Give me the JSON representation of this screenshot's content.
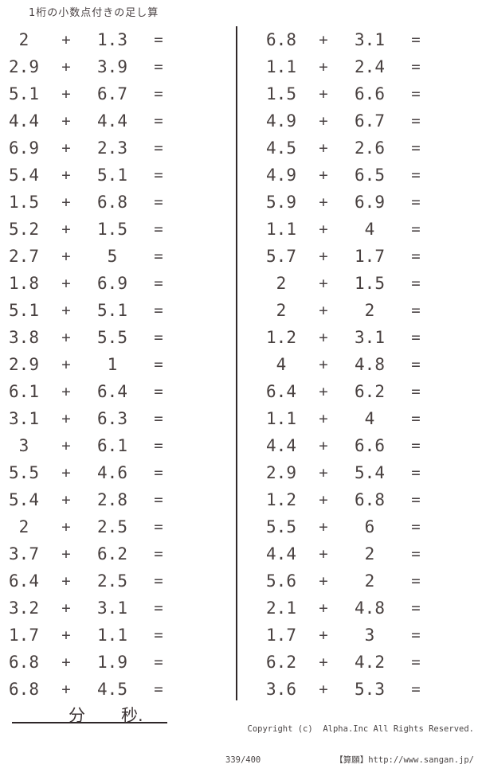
{
  "title": "1桁の小数点付きの足し算",
  "operators": {
    "plus": "+",
    "equals": "="
  },
  "problems": {
    "left": [
      {
        "a": "2",
        "b": "1.3"
      },
      {
        "a": "2.9",
        "b": "3.9"
      },
      {
        "a": "5.1",
        "b": "6.7"
      },
      {
        "a": "4.4",
        "b": "4.4"
      },
      {
        "a": "6.9",
        "b": "2.3"
      },
      {
        "a": "5.4",
        "b": "5.1"
      },
      {
        "a": "1.5",
        "b": "6.8"
      },
      {
        "a": "5.2",
        "b": "1.5"
      },
      {
        "a": "2.7",
        "b": "5"
      },
      {
        "a": "1.8",
        "b": "6.9"
      },
      {
        "a": "5.1",
        "b": "5.1"
      },
      {
        "a": "3.8",
        "b": "5.5"
      },
      {
        "a": "2.9",
        "b": "1"
      },
      {
        "a": "6.1",
        "b": "6.4"
      },
      {
        "a": "3.1",
        "b": "6.3"
      },
      {
        "a": "3",
        "b": "6.1"
      },
      {
        "a": "5.5",
        "b": "4.6"
      },
      {
        "a": "5.4",
        "b": "2.8"
      },
      {
        "a": "2",
        "b": "2.5"
      },
      {
        "a": "3.7",
        "b": "6.2"
      },
      {
        "a": "6.4",
        "b": "2.5"
      },
      {
        "a": "3.2",
        "b": "3.1"
      },
      {
        "a": "1.7",
        "b": "1.1"
      },
      {
        "a": "6.8",
        "b": "1.9"
      },
      {
        "a": "6.8",
        "b": "4.5"
      }
    ],
    "right": [
      {
        "a": "6.8",
        "b": "3.1"
      },
      {
        "a": "1.1",
        "b": "2.4"
      },
      {
        "a": "1.5",
        "b": "6.6"
      },
      {
        "a": "4.9",
        "b": "6.7"
      },
      {
        "a": "4.5",
        "b": "2.6"
      },
      {
        "a": "4.9",
        "b": "6.5"
      },
      {
        "a": "5.9",
        "b": "6.9"
      },
      {
        "a": "1.1",
        "b": "4"
      },
      {
        "a": "5.7",
        "b": "1.7"
      },
      {
        "a": "2",
        "b": "1.5"
      },
      {
        "a": "2",
        "b": "2"
      },
      {
        "a": "1.2",
        "b": "3.1"
      },
      {
        "a": "4",
        "b": "4.8"
      },
      {
        "a": "6.4",
        "b": "6.2"
      },
      {
        "a": "1.1",
        "b": "4"
      },
      {
        "a": "4.4",
        "b": "6.6"
      },
      {
        "a": "2.9",
        "b": "5.4"
      },
      {
        "a": "1.2",
        "b": "6.8"
      },
      {
        "a": "5.5",
        "b": "6"
      },
      {
        "a": "4.4",
        "b": "2"
      },
      {
        "a": "5.6",
        "b": "2"
      },
      {
        "a": "2.1",
        "b": "4.8"
      },
      {
        "a": "1.7",
        "b": "3"
      },
      {
        "a": "6.2",
        "b": "4.2"
      },
      {
        "a": "3.6",
        "b": "5.3"
      }
    ]
  },
  "footer": {
    "minutes_label": "分",
    "seconds_label": "秒.",
    "copyright_line1": "Copyright (c)  Alpha.Inc All Rights Reserved.",
    "page_number": "339/400",
    "site_credit": "【算願】http://www.sangan.jp/"
  },
  "colors": {
    "text": "#48403f",
    "line": "#302829"
  }
}
